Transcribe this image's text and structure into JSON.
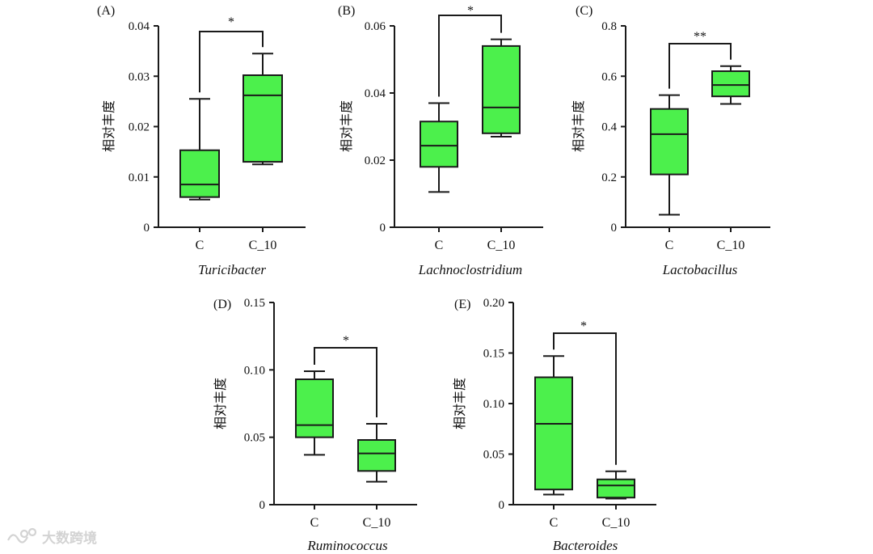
{
  "box_color": "#4cf04c",
  "line_color": "#1a1a1a",
  "y_axis_label": "相对丰度",
  "watermark": {
    "text": "大数跨境"
  },
  "chart_data": [
    {
      "id": "A",
      "panel_label": "(A)",
      "type": "box",
      "genus": "Turicibacter",
      "ylim": [
        0,
        0.04
      ],
      "yticks": [
        "0",
        "0.01",
        "0.02",
        "0.03",
        "0.04"
      ],
      "categories": [
        "C",
        "C_10"
      ],
      "boxes": [
        {
          "name": "C",
          "min": 0.0055,
          "q1": 0.006,
          "median": 0.0085,
          "q3": 0.0153,
          "max": 0.0255
        },
        {
          "name": "C_10",
          "min": 0.0125,
          "q1": 0.013,
          "median": 0.0262,
          "q3": 0.0302,
          "max": 0.0345
        }
      ],
      "significance": "*"
    },
    {
      "id": "B",
      "panel_label": "(B)",
      "type": "box",
      "genus": "Lachnoclostridium",
      "ylim": [
        0,
        0.06
      ],
      "yticks": [
        "0",
        "0.02",
        "0.04",
        "0.06"
      ],
      "categories": [
        "C",
        "C_10"
      ],
      "boxes": [
        {
          "name": "C",
          "min": 0.0105,
          "q1": 0.018,
          "median": 0.0243,
          "q3": 0.0315,
          "max": 0.037
        },
        {
          "name": "C_10",
          "min": 0.027,
          "q1": 0.028,
          "median": 0.0357,
          "q3": 0.054,
          "max": 0.056
        }
      ],
      "significance": "*"
    },
    {
      "id": "C",
      "panel_label": "(C)",
      "type": "box",
      "genus": "Lactobacillus",
      "ylim": [
        0,
        0.8
      ],
      "yticks": [
        "0",
        "0.2",
        "0.4",
        "0.6",
        "0.8"
      ],
      "categories": [
        "C",
        "C_10"
      ],
      "boxes": [
        {
          "name": "C",
          "min": 0.05,
          "q1": 0.21,
          "median": 0.37,
          "q3": 0.47,
          "max": 0.525
        },
        {
          "name": "C_10",
          "min": 0.49,
          "q1": 0.52,
          "median": 0.565,
          "q3": 0.62,
          "max": 0.64
        }
      ],
      "significance": "**"
    },
    {
      "id": "D",
      "panel_label": "(D)",
      "type": "box",
      "genus": "Ruminococcus",
      "ylim": [
        0,
        0.15
      ],
      "yticks": [
        "0",
        "0.05",
        "0.10",
        "0.15"
      ],
      "categories": [
        "C",
        "C_10"
      ],
      "boxes": [
        {
          "name": "C",
          "min": 0.037,
          "q1": 0.05,
          "median": 0.059,
          "q3": 0.093,
          "max": 0.099
        },
        {
          "name": "C_10",
          "min": 0.017,
          "q1": 0.025,
          "median": 0.038,
          "q3": 0.048,
          "max": 0.06
        }
      ],
      "significance": "*"
    },
    {
      "id": "E",
      "panel_label": "(E)",
      "type": "box",
      "genus": "Bacteroides",
      "ylim": [
        0,
        0.2
      ],
      "yticks": [
        "0",
        "0.05",
        "0.10",
        "0.15",
        "0.20"
      ],
      "categories": [
        "C",
        "C_10"
      ],
      "boxes": [
        {
          "name": "C",
          "min": 0.01,
          "q1": 0.015,
          "median": 0.08,
          "q3": 0.126,
          "max": 0.147
        },
        {
          "name": "C_10",
          "min": 0.006,
          "q1": 0.007,
          "median": 0.019,
          "q3": 0.025,
          "max": 0.033
        }
      ],
      "significance": "*"
    }
  ]
}
